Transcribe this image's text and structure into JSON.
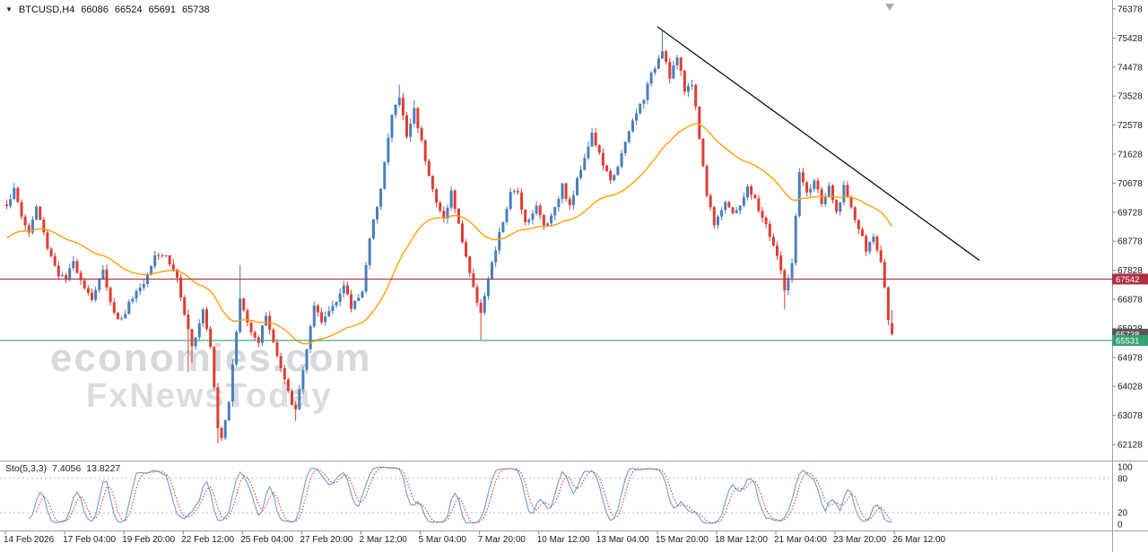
{
  "quote": {
    "symbol": "BTCUSD,H4",
    "open": "66086",
    "high": "66524",
    "low": "65691",
    "close": "65738"
  },
  "icons": {
    "dropdown_arrow": "▼"
  },
  "watermark": {
    "line1": "economies.com",
    "line2": "FxNewsToday"
  },
  "indicator_label": {
    "name": "Sto(5,3,3)",
    "k": "7.4056",
    "d": "13.8227"
  },
  "colors": {
    "background": "#ffffff",
    "bull_candle": "#4a7ebb",
    "bear_candle": "#e03c34",
    "ma_line": "#ffa000",
    "trendline": "#000000",
    "resistance_line": "#b03043",
    "support_line": "#35a173",
    "bid_badge": "#585858",
    "sto_k_line": "#6f9bd1",
    "sto_d_line": "#d93838",
    "axis_text": "#1a1a1a",
    "separator": "#9e9e9e",
    "tick_mark": "#888888",
    "level_dash": "#bbbbbb",
    "shift_marker": "#a9a9a9"
  },
  "chart_data": {
    "type": "candlestick",
    "symbol": "BTCUSD",
    "timeframe": "H4",
    "title": "BTCUSD,H4",
    "current_ohlc": {
      "open": 66086,
      "high": 66524,
      "low": 65691,
      "close": 65738
    },
    "y_axis": {
      "top_tick": 76378,
      "tick_step": 950,
      "ticks": [
        76378,
        75428,
        74478,
        73528,
        72578,
        71628,
        70678,
        69728,
        68778,
        67828,
        66878,
        65928,
        64978,
        64028,
        63078,
        62128
      ]
    },
    "x_axis": {
      "labels": [
        "14 Feb 2026",
        "17 Feb 04:00",
        "19 Feb 20:00",
        "22 Feb 12:00",
        "25 Feb 04:00",
        "27 Feb 20:00",
        "2 Mar 12:00",
        "5 Mar 04:00",
        "7 Mar 20:00",
        "10 Mar 12:00",
        "13 Mar 04:00",
        "15 Mar 20:00",
        "18 Mar 12:00",
        "21 Mar 04:00",
        "23 Mar 20:00",
        "26 Mar 12:00"
      ],
      "candles_per_label": 16
    },
    "candle_count": 240,
    "close_path_anchors": [
      [
        0,
        70000
      ],
      [
        2,
        70450
      ],
      [
        4,
        69600
      ],
      [
        6,
        69050
      ],
      [
        8,
        69900
      ],
      [
        11,
        68600
      ],
      [
        14,
        67700
      ],
      [
        16,
        67500
      ],
      [
        18,
        68100
      ],
      [
        21,
        67300
      ],
      [
        23,
        66900
      ],
      [
        26,
        67800
      ],
      [
        29,
        66400
      ],
      [
        31,
        66200
      ],
      [
        34,
        67000
      ],
      [
        37,
        67400
      ],
      [
        40,
        68400
      ],
      [
        43,
        68300
      ],
      [
        46,
        67600
      ],
      [
        48,
        66300
      ],
      [
        50,
        65300
      ],
      [
        53,
        66600
      ],
      [
        55,
        65400
      ],
      [
        57,
        62700
      ],
      [
        58,
        62400
      ],
      [
        60,
        63600
      ],
      [
        63,
        66900
      ],
      [
        65,
        66100
      ],
      [
        68,
        65500
      ],
      [
        70,
        66400
      ],
      [
        73,
        65000
      ],
      [
        76,
        63800
      ],
      [
        78,
        63200
      ],
      [
        80,
        64600
      ],
      [
        83,
        66600
      ],
      [
        85,
        66100
      ],
      [
        88,
        66700
      ],
      [
        91,
        67300
      ],
      [
        93,
        66600
      ],
      [
        96,
        67200
      ],
      [
        98,
        68800
      ],
      [
        101,
        70600
      ],
      [
        104,
        72900
      ],
      [
        106,
        73500
      ],
      [
        108,
        72200
      ],
      [
        110,
        73100
      ],
      [
        113,
        71500
      ],
      [
        116,
        70000
      ],
      [
        118,
        69500
      ],
      [
        120,
        70400
      ],
      [
        122,
        69300
      ],
      [
        124,
        68300
      ],
      [
        126,
        67200
      ],
      [
        128,
        66500
      ],
      [
        130,
        67500
      ],
      [
        133,
        69000
      ],
      [
        136,
        70300
      ],
      [
        138,
        70400
      ],
      [
        140,
        69400
      ],
      [
        143,
        69900
      ],
      [
        145,
        69300
      ],
      [
        147,
        69600
      ],
      [
        150,
        70600
      ],
      [
        152,
        69900
      ],
      [
        155,
        71200
      ],
      [
        158,
        72300
      ],
      [
        160,
        71600
      ],
      [
        163,
        70700
      ],
      [
        166,
        71600
      ],
      [
        169,
        72700
      ],
      [
        172,
        73500
      ],
      [
        174,
        74200
      ],
      [
        177,
        75100
      ],
      [
        179,
        74200
      ],
      [
        181,
        74800
      ],
      [
        183,
        73700
      ],
      [
        185,
        74000
      ],
      [
        187,
        72200
      ],
      [
        189,
        70300
      ],
      [
        191,
        69400
      ],
      [
        194,
        70100
      ],
      [
        196,
        69600
      ],
      [
        198,
        70000
      ],
      [
        200,
        70500
      ],
      [
        202,
        70100
      ],
      [
        205,
        69300
      ],
      [
        208,
        68300
      ],
      [
        210,
        67200
      ],
      [
        212,
        68000
      ],
      [
        214,
        71000
      ],
      [
        216,
        70300
      ],
      [
        218,
        70800
      ],
      [
        220,
        70000
      ],
      [
        222,
        70500
      ],
      [
        224,
        69700
      ],
      [
        226,
        70600
      ],
      [
        228,
        69800
      ],
      [
        230,
        69200
      ],
      [
        232,
        68500
      ],
      [
        234,
        68900
      ],
      [
        236,
        68100
      ],
      [
        237,
        67200
      ],
      [
        238,
        66300
      ],
      [
        239,
        65738
      ]
    ],
    "wick_overrides": {
      "49": 64500,
      "50": 64800,
      "57": 62160,
      "63": 68000,
      "78": 62900,
      "106": 73900,
      "110": 73400,
      "128": 65560,
      "177": 75700,
      "210": 66560
    },
    "moving_average": {
      "type": "EMA",
      "period": 40
    },
    "trendline": {
      "from_index": 176,
      "from_price": 75800,
      "to_index": 263,
      "to_price": 68150
    },
    "horizontal_levels": [
      {
        "price": 67542,
        "role": "resistance",
        "label": "67542"
      },
      {
        "price": 65531,
        "role": "support",
        "label": "65531"
      }
    ],
    "bid_price": 65738,
    "bid_label": "65738",
    "stochastic": {
      "period_k": 5,
      "slowing": 3,
      "period_d": 3,
      "current_k": 7.4056,
      "current_d": 13.8227,
      "level_lines": [
        80,
        20
      ],
      "scale_labels": [
        100,
        80,
        20,
        0
      ]
    },
    "render": {
      "seed": 1337,
      "close_noise": 220,
      "wick_noise": 160
    }
  }
}
